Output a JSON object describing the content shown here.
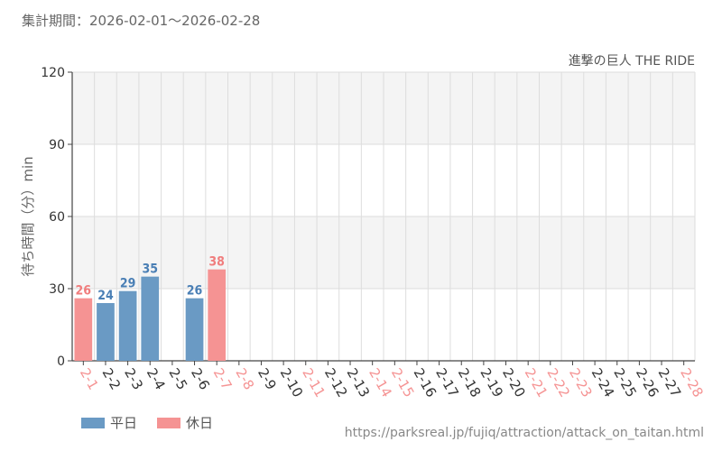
{
  "header": {
    "period": "集計期間：2026-02-01～2026-02-28"
  },
  "legend": {
    "weekday_label": "平日",
    "holiday_label": "休日"
  },
  "colors": {
    "weekday": "#6a9ac4",
    "weekday_text": "#4a7fb5",
    "holiday": "#f59393",
    "holiday_text": "#f07d7d",
    "band": "#f4f4f4",
    "grid": "#dddddd",
    "axis": "#444444"
  },
  "source_url": "https://parksreal.jp/fujiq/attraction/attack_on_taitan.html",
  "chart_data": {
    "type": "bar",
    "title": "進撃の巨人 THE RIDE",
    "ylabel": "待ち時間（分）min",
    "xlabel": "",
    "ylim": [
      0,
      120
    ],
    "yticks": [
      0,
      30,
      60,
      90,
      120
    ],
    "grid": true,
    "legend_position": "bottom-left",
    "categories": [
      "2-1",
      "2-2",
      "2-3",
      "2-4",
      "2-5",
      "2-6",
      "2-7",
      "2-8",
      "2-9",
      "2-10",
      "2-11",
      "2-12",
      "2-13",
      "2-14",
      "2-15",
      "2-16",
      "2-17",
      "2-18",
      "2-19",
      "2-20",
      "2-21",
      "2-22",
      "2-23",
      "2-24",
      "2-25",
      "2-26",
      "2-27",
      "2-28"
    ],
    "day_type": [
      "holiday",
      "weekday",
      "weekday",
      "weekday",
      "weekday",
      "weekday",
      "holiday",
      "holiday",
      "weekday",
      "weekday",
      "holiday",
      "weekday",
      "weekday",
      "holiday",
      "holiday",
      "weekday",
      "weekday",
      "weekday",
      "weekday",
      "weekday",
      "holiday",
      "holiday",
      "holiday",
      "weekday",
      "weekday",
      "weekday",
      "weekday",
      "holiday"
    ],
    "values": [
      26,
      24,
      29,
      35,
      null,
      26,
      38,
      null,
      null,
      null,
      null,
      null,
      null,
      null,
      null,
      null,
      null,
      null,
      null,
      null,
      null,
      null,
      null,
      null,
      null,
      null,
      null,
      null
    ]
  }
}
